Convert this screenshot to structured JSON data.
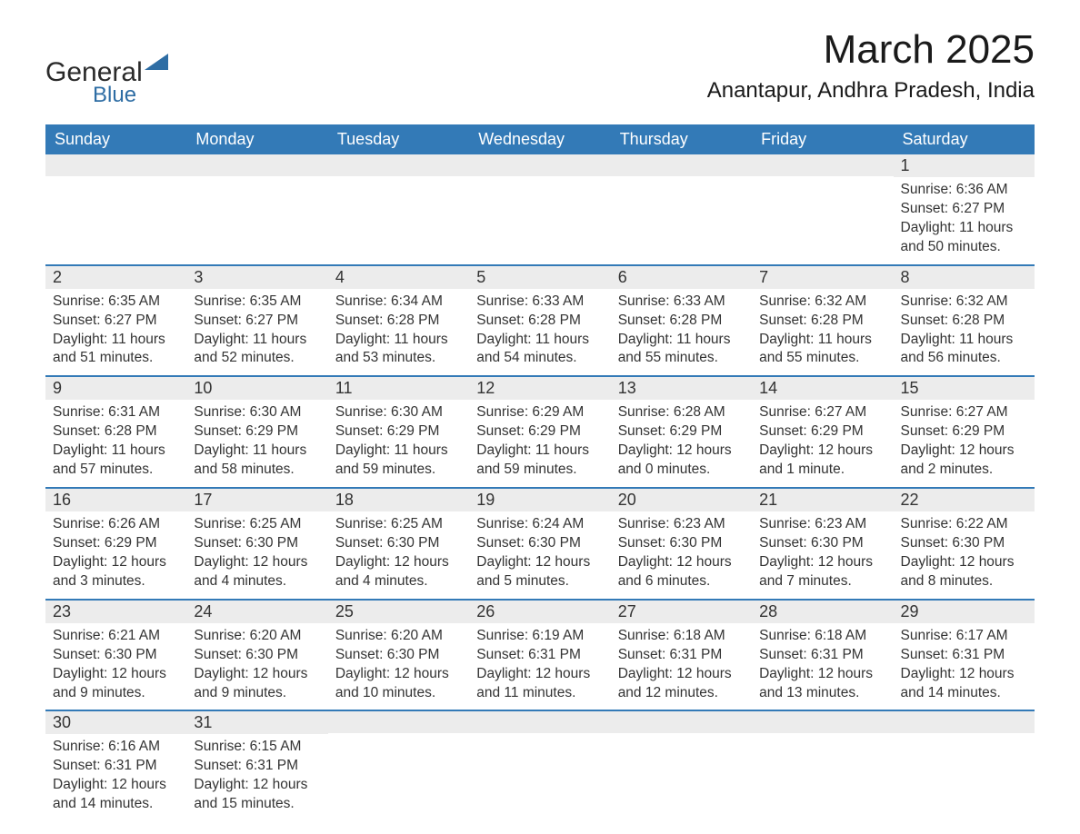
{
  "brand": {
    "name_a": "General",
    "name_b": "Blue"
  },
  "title": "March 2025",
  "location": "Anantapur, Andhra Pradesh, India",
  "colors": {
    "header_bg": "#337ab7",
    "header_text": "#ffffff",
    "row_divider": "#337ab7",
    "daynum_bg": "#ececec",
    "text": "#333333",
    "background": "#ffffff",
    "brand_accent": "#2e6da4"
  },
  "typography": {
    "title_fontsize": 44,
    "location_fontsize": 24,
    "dayheader_fontsize": 18,
    "daynum_fontsize": 18,
    "body_fontsize": 15.5,
    "font_family": "Arial"
  },
  "day_headers": [
    "Sunday",
    "Monday",
    "Tuesday",
    "Wednesday",
    "Thursday",
    "Friday",
    "Saturday"
  ],
  "weeks": [
    [
      null,
      null,
      null,
      null,
      null,
      null,
      {
        "n": "1",
        "sr": "Sunrise: 6:36 AM",
        "ss": "Sunset: 6:27 PM",
        "dl": "Daylight: 11 hours and 50 minutes."
      }
    ],
    [
      {
        "n": "2",
        "sr": "Sunrise: 6:35 AM",
        "ss": "Sunset: 6:27 PM",
        "dl": "Daylight: 11 hours and 51 minutes."
      },
      {
        "n": "3",
        "sr": "Sunrise: 6:35 AM",
        "ss": "Sunset: 6:27 PM",
        "dl": "Daylight: 11 hours and 52 minutes."
      },
      {
        "n": "4",
        "sr": "Sunrise: 6:34 AM",
        "ss": "Sunset: 6:28 PM",
        "dl": "Daylight: 11 hours and 53 minutes."
      },
      {
        "n": "5",
        "sr": "Sunrise: 6:33 AM",
        "ss": "Sunset: 6:28 PM",
        "dl": "Daylight: 11 hours and 54 minutes."
      },
      {
        "n": "6",
        "sr": "Sunrise: 6:33 AM",
        "ss": "Sunset: 6:28 PM",
        "dl": "Daylight: 11 hours and 55 minutes."
      },
      {
        "n": "7",
        "sr": "Sunrise: 6:32 AM",
        "ss": "Sunset: 6:28 PM",
        "dl": "Daylight: 11 hours and 55 minutes."
      },
      {
        "n": "8",
        "sr": "Sunrise: 6:32 AM",
        "ss": "Sunset: 6:28 PM",
        "dl": "Daylight: 11 hours and 56 minutes."
      }
    ],
    [
      {
        "n": "9",
        "sr": "Sunrise: 6:31 AM",
        "ss": "Sunset: 6:28 PM",
        "dl": "Daylight: 11 hours and 57 minutes."
      },
      {
        "n": "10",
        "sr": "Sunrise: 6:30 AM",
        "ss": "Sunset: 6:29 PM",
        "dl": "Daylight: 11 hours and 58 minutes."
      },
      {
        "n": "11",
        "sr": "Sunrise: 6:30 AM",
        "ss": "Sunset: 6:29 PM",
        "dl": "Daylight: 11 hours and 59 minutes."
      },
      {
        "n": "12",
        "sr": "Sunrise: 6:29 AM",
        "ss": "Sunset: 6:29 PM",
        "dl": "Daylight: 11 hours and 59 minutes."
      },
      {
        "n": "13",
        "sr": "Sunrise: 6:28 AM",
        "ss": "Sunset: 6:29 PM",
        "dl": "Daylight: 12 hours and 0 minutes."
      },
      {
        "n": "14",
        "sr": "Sunrise: 6:27 AM",
        "ss": "Sunset: 6:29 PM",
        "dl": "Daylight: 12 hours and 1 minute."
      },
      {
        "n": "15",
        "sr": "Sunrise: 6:27 AM",
        "ss": "Sunset: 6:29 PM",
        "dl": "Daylight: 12 hours and 2 minutes."
      }
    ],
    [
      {
        "n": "16",
        "sr": "Sunrise: 6:26 AM",
        "ss": "Sunset: 6:29 PM",
        "dl": "Daylight: 12 hours and 3 minutes."
      },
      {
        "n": "17",
        "sr": "Sunrise: 6:25 AM",
        "ss": "Sunset: 6:30 PM",
        "dl": "Daylight: 12 hours and 4 minutes."
      },
      {
        "n": "18",
        "sr": "Sunrise: 6:25 AM",
        "ss": "Sunset: 6:30 PM",
        "dl": "Daylight: 12 hours and 4 minutes."
      },
      {
        "n": "19",
        "sr": "Sunrise: 6:24 AM",
        "ss": "Sunset: 6:30 PM",
        "dl": "Daylight: 12 hours and 5 minutes."
      },
      {
        "n": "20",
        "sr": "Sunrise: 6:23 AM",
        "ss": "Sunset: 6:30 PM",
        "dl": "Daylight: 12 hours and 6 minutes."
      },
      {
        "n": "21",
        "sr": "Sunrise: 6:23 AM",
        "ss": "Sunset: 6:30 PM",
        "dl": "Daylight: 12 hours and 7 minutes."
      },
      {
        "n": "22",
        "sr": "Sunrise: 6:22 AM",
        "ss": "Sunset: 6:30 PM",
        "dl": "Daylight: 12 hours and 8 minutes."
      }
    ],
    [
      {
        "n": "23",
        "sr": "Sunrise: 6:21 AM",
        "ss": "Sunset: 6:30 PM",
        "dl": "Daylight: 12 hours and 9 minutes."
      },
      {
        "n": "24",
        "sr": "Sunrise: 6:20 AM",
        "ss": "Sunset: 6:30 PM",
        "dl": "Daylight: 12 hours and 9 minutes."
      },
      {
        "n": "25",
        "sr": "Sunrise: 6:20 AM",
        "ss": "Sunset: 6:30 PM",
        "dl": "Daylight: 12 hours and 10 minutes."
      },
      {
        "n": "26",
        "sr": "Sunrise: 6:19 AM",
        "ss": "Sunset: 6:31 PM",
        "dl": "Daylight: 12 hours and 11 minutes."
      },
      {
        "n": "27",
        "sr": "Sunrise: 6:18 AM",
        "ss": "Sunset: 6:31 PM",
        "dl": "Daylight: 12 hours and 12 minutes."
      },
      {
        "n": "28",
        "sr": "Sunrise: 6:18 AM",
        "ss": "Sunset: 6:31 PM",
        "dl": "Daylight: 12 hours and 13 minutes."
      },
      {
        "n": "29",
        "sr": "Sunrise: 6:17 AM",
        "ss": "Sunset: 6:31 PM",
        "dl": "Daylight: 12 hours and 14 minutes."
      }
    ],
    [
      {
        "n": "30",
        "sr": "Sunrise: 6:16 AM",
        "ss": "Sunset: 6:31 PM",
        "dl": "Daylight: 12 hours and 14 minutes."
      },
      {
        "n": "31",
        "sr": "Sunrise: 6:15 AM",
        "ss": "Sunset: 6:31 PM",
        "dl": "Daylight: 12 hours and 15 minutes."
      },
      null,
      null,
      null,
      null,
      null
    ]
  ]
}
